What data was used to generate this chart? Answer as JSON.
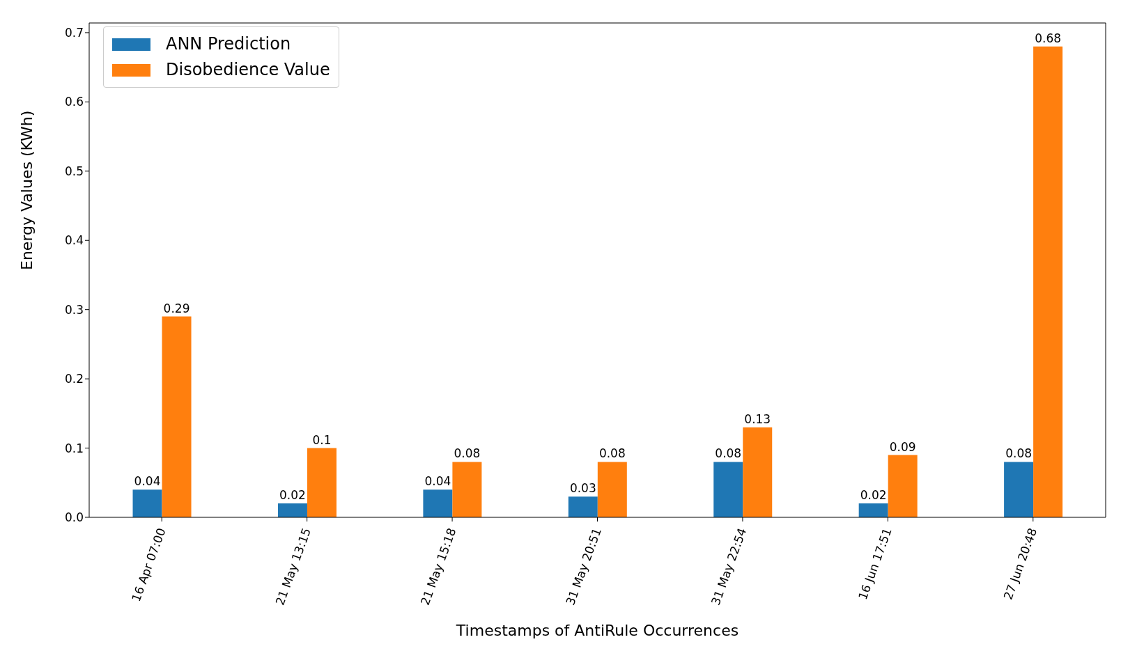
{
  "chart_data": {
    "type": "bar",
    "xlabel": "Timestamps of AntiRule Occurrences",
    "ylabel": "Energy Values (KWh)",
    "categories": [
      "16 Apr 07:00",
      "21 May 13:15",
      "21 May 15:18",
      "31 May 20:51",
      "31 May 22:54",
      "16 Jun 17:51",
      "27 Jun 20:48"
    ],
    "series": [
      {
        "name": "ANN Prediction",
        "color": "#1f77b4",
        "values": [
          0.04,
          0.02,
          0.04,
          0.03,
          0.08,
          0.02,
          0.08
        ]
      },
      {
        "name": "Disobedience Value",
        "color": "#ff7f0e",
        "values": [
          0.29,
          0.1,
          0.08,
          0.08,
          0.13,
          0.09,
          0.68
        ]
      }
    ],
    "ylim": [
      0,
      0.714
    ],
    "yticks": [
      {
        "value": 0,
        "label": "0.0"
      },
      0.1,
      0.2,
      0.3,
      0.4,
      0.5,
      0.6,
      0.7
    ],
    "data_labels": true,
    "legend": "top left",
    "grid": false
  }
}
